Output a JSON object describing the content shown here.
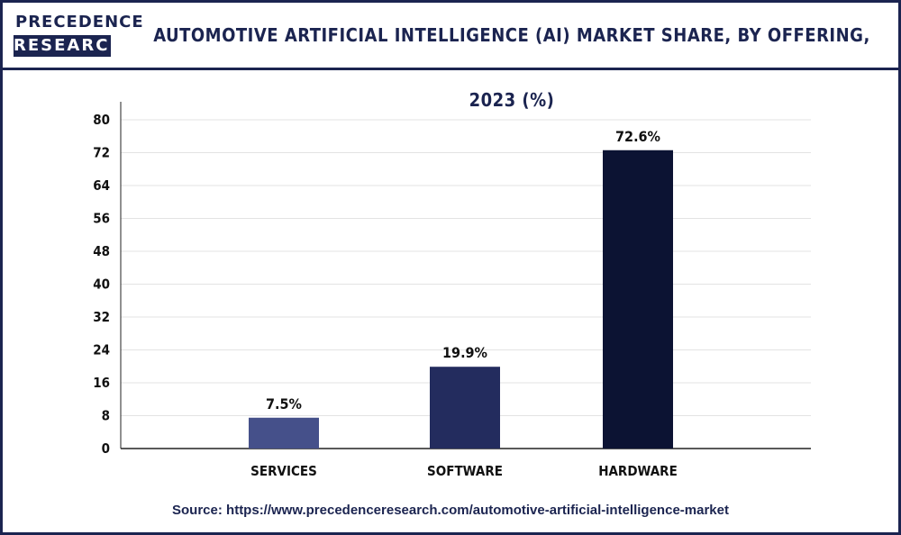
{
  "brand": {
    "logo_top": "PRECEDENCE",
    "logo_bottom": "RESEARCH"
  },
  "source": "Source: https://www.precedenceresearch.com/automotive-artificial-intelligence-market",
  "colors": {
    "services": "#45508a",
    "software": "#232c5e",
    "hardware": "#0c1333",
    "frame": "#1b2450"
  },
  "chart_data": {
    "type": "bar",
    "title": "AUTOMOTIVE ARTIFICIAL INTELLIGENCE (AI) MARKET SHARE, BY OFFERING, 2023 (%)",
    "categories": [
      "SERVICES",
      "SOFTWARE",
      "HARDWARE"
    ],
    "values": [
      7.5,
      19.9,
      72.6
    ],
    "data_labels": [
      "7.5%",
      "19.9%",
      "72.6%"
    ],
    "xlabel": "",
    "ylabel": "",
    "ylim": [
      0,
      80
    ],
    "yticks": [
      0,
      8,
      16,
      24,
      32,
      40,
      48,
      56,
      64,
      72,
      80
    ],
    "grid": true
  }
}
